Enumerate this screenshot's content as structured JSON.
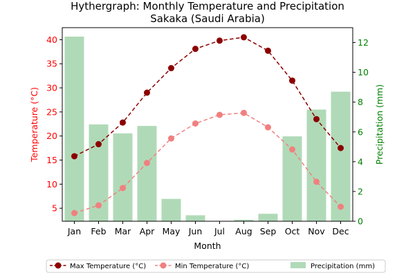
{
  "chart_data": {
    "type": "bar",
    "title": "Hythergraph: Monthly Temperature and Precipitation",
    "subtitle": "Sakaka (Saudi Arabia)",
    "xlabel": "Month",
    "ylabel_left": "Temperature (°C)",
    "ylabel_right": "Precipitation (mm)",
    "categories": [
      "Jan",
      "Feb",
      "Mar",
      "Apr",
      "May",
      "Jun",
      "Jul",
      "Aug",
      "Sep",
      "Oct",
      "Nov",
      "Dec"
    ],
    "y_left_range": [
      2.3,
      42.5
    ],
    "y_left_ticks": [
      5,
      10,
      15,
      20,
      25,
      30,
      35,
      40
    ],
    "y_right_range": [
      0,
      13.0
    ],
    "y_right_ticks": [
      0,
      2,
      4,
      6,
      8,
      10,
      12
    ],
    "grid": false,
    "legend_position": "bottom-center",
    "series": [
      {
        "name": "Max Temperature (°C)",
        "kind": "line",
        "axis": "left",
        "color": "#8b0000",
        "style": "dashed",
        "marker": "circle",
        "values": [
          15.8,
          18.3,
          22.8,
          29.0,
          34.1,
          38.1,
          39.8,
          40.5,
          37.7,
          31.5,
          23.5,
          17.5
        ]
      },
      {
        "name": "Min Temperature (°C)",
        "kind": "line",
        "axis": "left",
        "color": "#f08080",
        "style": "dashed",
        "marker": "circle",
        "values": [
          4.0,
          5.6,
          9.2,
          14.4,
          19.5,
          22.6,
          24.4,
          24.8,
          21.8,
          17.2,
          10.5,
          5.3
        ]
      },
      {
        "name": "Precipitation (mm)",
        "kind": "bar",
        "axis": "right",
        "color": "#8fca98",
        "values": [
          12.4,
          6.5,
          5.9,
          6.4,
          1.5,
          0.4,
          0.0,
          0.1,
          0.5,
          5.7,
          7.5,
          8.7
        ]
      }
    ]
  }
}
